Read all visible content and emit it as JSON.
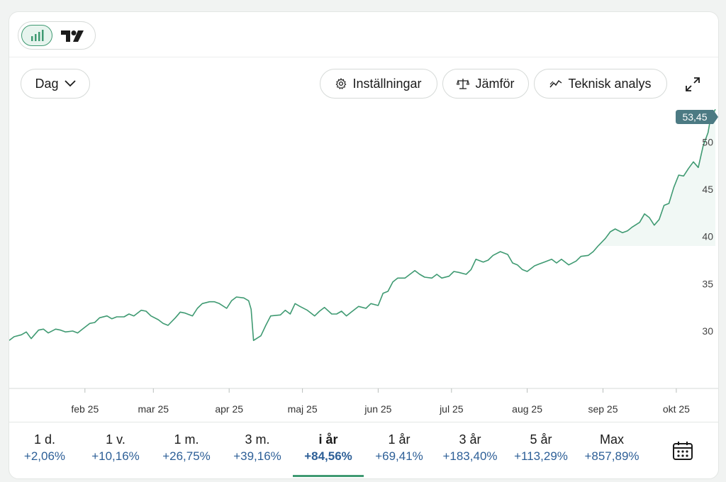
{
  "toolbar": {
    "interval_label": "Dag",
    "settings_label": "Inställningar",
    "compare_label": "Jämför",
    "technical_label": "Teknisk analys"
  },
  "chart_data": {
    "type": "area",
    "last_value_label": "53,45",
    "ylim": [
      24,
      54
    ],
    "yticks": [
      30,
      35,
      40,
      45,
      50
    ],
    "xlim": [
      "2025-01-01",
      "2025-10-17"
    ],
    "xticks": [
      {
        "label": "feb 25",
        "date": "2025-02-01"
      },
      {
        "label": "mar 25",
        "date": "2025-03-01"
      },
      {
        "label": "apr 25",
        "date": "2025-04-01"
      },
      {
        "label": "maj 25",
        "date": "2025-05-01"
      },
      {
        "label": "jun 25",
        "date": "2025-06-01"
      },
      {
        "label": "jul 25",
        "date": "2025-07-01"
      },
      {
        "label": "aug 25",
        "date": "2025-08-01"
      },
      {
        "label": "sep 25",
        "date": "2025-09-01"
      },
      {
        "label": "okt 25",
        "date": "2025-10-01"
      }
    ],
    "series": [
      {
        "color": "#3f9a72",
        "points": [
          [
            "2025-01-01",
            29.0
          ],
          [
            "2025-01-03",
            29.4
          ],
          [
            "2025-01-06",
            29.6
          ],
          [
            "2025-01-08",
            29.9
          ],
          [
            "2025-01-10",
            29.2
          ],
          [
            "2025-01-13",
            30.1
          ],
          [
            "2025-01-15",
            30.2
          ],
          [
            "2025-01-17",
            29.8
          ],
          [
            "2025-01-20",
            30.2
          ],
          [
            "2025-01-22",
            30.1
          ],
          [
            "2025-01-24",
            29.9
          ],
          [
            "2025-01-27",
            30.0
          ],
          [
            "2025-01-29",
            29.8
          ],
          [
            "2025-01-31",
            30.2
          ],
          [
            "2025-02-03",
            30.8
          ],
          [
            "2025-02-05",
            30.9
          ],
          [
            "2025-02-07",
            31.4
          ],
          [
            "2025-02-10",
            31.6
          ],
          [
            "2025-02-12",
            31.3
          ],
          [
            "2025-02-14",
            31.5
          ],
          [
            "2025-02-17",
            31.5
          ],
          [
            "2025-02-19",
            31.8
          ],
          [
            "2025-02-21",
            31.6
          ],
          [
            "2025-02-24",
            32.2
          ],
          [
            "2025-02-26",
            32.1
          ],
          [
            "2025-02-28",
            31.6
          ],
          [
            "2025-03-03",
            31.2
          ],
          [
            "2025-03-05",
            30.8
          ],
          [
            "2025-03-07",
            30.6
          ],
          [
            "2025-03-10",
            31.4
          ],
          [
            "2025-03-12",
            32.0
          ],
          [
            "2025-03-14",
            31.9
          ],
          [
            "2025-03-17",
            31.6
          ],
          [
            "2025-03-19",
            32.4
          ],
          [
            "2025-03-21",
            32.9
          ],
          [
            "2025-03-24",
            33.1
          ],
          [
            "2025-03-26",
            33.1
          ],
          [
            "2025-03-28",
            32.9
          ],
          [
            "2025-03-31",
            32.4
          ],
          [
            "2025-04-02",
            33.2
          ],
          [
            "2025-04-04",
            33.6
          ],
          [
            "2025-04-07",
            33.5
          ],
          [
            "2025-04-09",
            33.2
          ],
          [
            "2025-04-10",
            32.3
          ],
          [
            "2025-04-11",
            29.0
          ],
          [
            "2025-04-14",
            29.5
          ],
          [
            "2025-04-16",
            30.6
          ],
          [
            "2025-04-18",
            31.6
          ],
          [
            "2025-04-22",
            31.7
          ],
          [
            "2025-04-24",
            32.2
          ],
          [
            "2025-04-26",
            31.8
          ],
          [
            "2025-04-28",
            32.9
          ],
          [
            "2025-04-30",
            32.6
          ],
          [
            "2025-05-03",
            32.2
          ],
          [
            "2025-05-06",
            31.6
          ],
          [
            "2025-05-08",
            32.1
          ],
          [
            "2025-05-10",
            32.5
          ],
          [
            "2025-05-13",
            31.8
          ],
          [
            "2025-05-15",
            31.8
          ],
          [
            "2025-05-17",
            32.1
          ],
          [
            "2025-05-19",
            31.6
          ],
          [
            "2025-05-21",
            32.0
          ],
          [
            "2025-05-24",
            32.6
          ],
          [
            "2025-05-27",
            32.4
          ],
          [
            "2025-05-29",
            32.9
          ],
          [
            "2025-06-01",
            32.7
          ],
          [
            "2025-06-03",
            34.0
          ],
          [
            "2025-06-05",
            34.2
          ],
          [
            "2025-06-07",
            35.2
          ],
          [
            "2025-06-09",
            35.6
          ],
          [
            "2025-06-12",
            35.6
          ],
          [
            "2025-06-14",
            36.0
          ],
          [
            "2025-06-16",
            36.4
          ],
          [
            "2025-06-18",
            36.0
          ],
          [
            "2025-06-20",
            35.7
          ],
          [
            "2025-06-23",
            35.6
          ],
          [
            "2025-06-25",
            36.0
          ],
          [
            "2025-06-27",
            35.6
          ],
          [
            "2025-06-30",
            35.8
          ],
          [
            "2025-07-02",
            36.3
          ],
          [
            "2025-07-04",
            36.2
          ],
          [
            "2025-07-07",
            36.0
          ],
          [
            "2025-07-09",
            36.5
          ],
          [
            "2025-07-11",
            37.6
          ],
          [
            "2025-07-14",
            37.3
          ],
          [
            "2025-07-16",
            37.5
          ],
          [
            "2025-07-18",
            38.0
          ],
          [
            "2025-07-21",
            38.4
          ],
          [
            "2025-07-24",
            38.1
          ],
          [
            "2025-07-26",
            37.2
          ],
          [
            "2025-07-28",
            37.0
          ],
          [
            "2025-07-30",
            36.5
          ],
          [
            "2025-08-01",
            36.3
          ],
          [
            "2025-08-04",
            36.9
          ],
          [
            "2025-08-06",
            37.1
          ],
          [
            "2025-08-08",
            37.3
          ],
          [
            "2025-08-11",
            37.6
          ],
          [
            "2025-08-13",
            37.2
          ],
          [
            "2025-08-15",
            37.6
          ],
          [
            "2025-08-18",
            37.0
          ],
          [
            "2025-08-21",
            37.4
          ],
          [
            "2025-08-23",
            37.9
          ],
          [
            "2025-08-26",
            38.0
          ],
          [
            "2025-08-28",
            38.4
          ],
          [
            "2025-08-30",
            39.0
          ],
          [
            "2025-09-02",
            39.8
          ],
          [
            "2025-09-04",
            40.5
          ],
          [
            "2025-09-06",
            40.8
          ],
          [
            "2025-09-09",
            40.4
          ],
          [
            "2025-09-11",
            40.6
          ],
          [
            "2025-09-13",
            41.0
          ],
          [
            "2025-09-16",
            41.5
          ],
          [
            "2025-09-18",
            42.4
          ],
          [
            "2025-09-20",
            42.0
          ],
          [
            "2025-09-22",
            41.2
          ],
          [
            "2025-09-24",
            41.8
          ],
          [
            "2025-09-26",
            43.3
          ],
          [
            "2025-09-28",
            43.5
          ],
          [
            "2025-09-30",
            45.2
          ],
          [
            "2025-10-02",
            46.5
          ],
          [
            "2025-10-04",
            46.4
          ],
          [
            "2025-10-06",
            47.2
          ],
          [
            "2025-10-08",
            47.9
          ],
          [
            "2025-10-10",
            47.3
          ],
          [
            "2025-10-12",
            49.6
          ],
          [
            "2025-10-14",
            51.0
          ],
          [
            "2025-10-15",
            52.5
          ],
          [
            "2025-10-17",
            53.45
          ]
        ]
      }
    ]
  },
  "periods": [
    {
      "label": "1 d.",
      "change": "+2,06%"
    },
    {
      "label": "1 v.",
      "change": "+10,16%"
    },
    {
      "label": "1 m.",
      "change": "+26,75%"
    },
    {
      "label": "3 m.",
      "change": "+39,16%"
    },
    {
      "label": "i år",
      "change": "+84,56%"
    },
    {
      "label": "1 år",
      "change": "+69,41%"
    },
    {
      "label": "3 år",
      "change": "+183,40%"
    },
    {
      "label": "5 år",
      "change": "+113,29%"
    },
    {
      "label": "Max",
      "change": "+857,89%"
    }
  ],
  "active_period": "i år",
  "icons": {
    "chart_type_active": "bar-chart-icon",
    "brand": "tradingview-logo",
    "settings": "gear-icon",
    "compare": "scale-icon",
    "technical": "trend-icon",
    "expand": "expand-icon",
    "calendar": "calendar-icon"
  },
  "colors": {
    "line": "#3f9a72",
    "price_tag": "#4c7a83",
    "change_text": "#2d5f97"
  }
}
